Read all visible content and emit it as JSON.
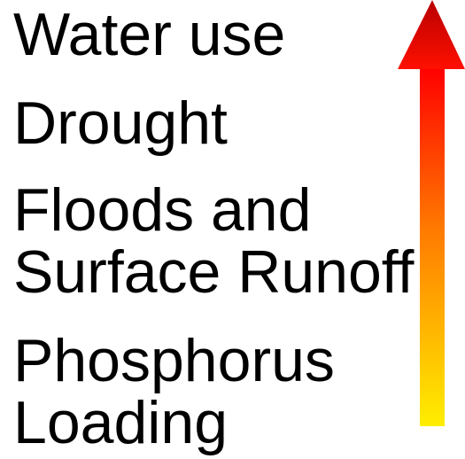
{
  "items": [
    {
      "lines": [
        "Water use"
      ]
    },
    {
      "lines": [
        "Drought"
      ]
    },
    {
      "lines": [
        "Floods and",
        "Surface Runoff"
      ]
    },
    {
      "lines": [
        "Phosphorus",
        "Loading"
      ]
    }
  ]
}
